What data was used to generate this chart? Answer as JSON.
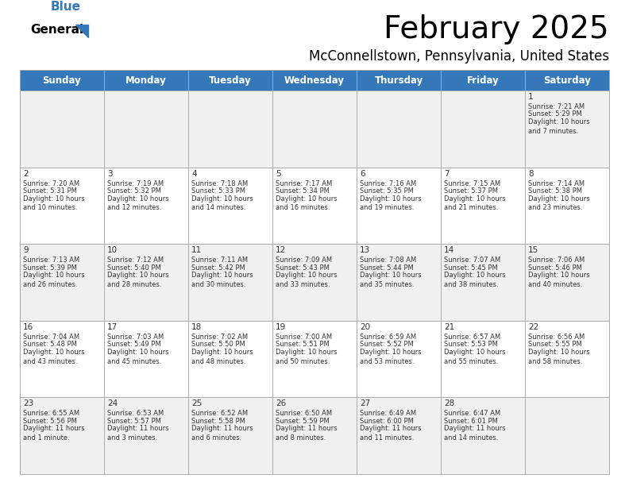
{
  "title": "February 2025",
  "subtitle": "McConnellstown, Pennsylvania, United States",
  "header_color": "#3578B9",
  "header_text_color": "#FFFFFF",
  "cell_bg_row0": "#F0F0F0",
  "cell_bg_row1": "#FFFFFF",
  "cell_bg_row2": "#F0F0F0",
  "cell_bg_row3": "#FFFFFF",
  "cell_bg_row4": "#F0F0F0",
  "border_color": "#AAAAAA",
  "text_color": "#333333",
  "days_of_week": [
    "Sunday",
    "Monday",
    "Tuesday",
    "Wednesday",
    "Thursday",
    "Friday",
    "Saturday"
  ],
  "weeks": [
    [
      {
        "day": "",
        "sunrise": "",
        "sunset": "",
        "daylight": ""
      },
      {
        "day": "",
        "sunrise": "",
        "sunset": "",
        "daylight": ""
      },
      {
        "day": "",
        "sunrise": "",
        "sunset": "",
        "daylight": ""
      },
      {
        "day": "",
        "sunrise": "",
        "sunset": "",
        "daylight": ""
      },
      {
        "day": "",
        "sunrise": "",
        "sunset": "",
        "daylight": ""
      },
      {
        "day": "",
        "sunrise": "",
        "sunset": "",
        "daylight": ""
      },
      {
        "day": "1",
        "sunrise": "7:21 AM",
        "sunset": "5:29 PM",
        "daylight": "10 hours\nand 7 minutes."
      }
    ],
    [
      {
        "day": "2",
        "sunrise": "7:20 AM",
        "sunset": "5:31 PM",
        "daylight": "10 hours\nand 10 minutes."
      },
      {
        "day": "3",
        "sunrise": "7:19 AM",
        "sunset": "5:32 PM",
        "daylight": "10 hours\nand 12 minutes."
      },
      {
        "day": "4",
        "sunrise": "7:18 AM",
        "sunset": "5:33 PM",
        "daylight": "10 hours\nand 14 minutes."
      },
      {
        "day": "5",
        "sunrise": "7:17 AM",
        "sunset": "5:34 PM",
        "daylight": "10 hours\nand 16 minutes."
      },
      {
        "day": "6",
        "sunrise": "7:16 AM",
        "sunset": "5:35 PM",
        "daylight": "10 hours\nand 19 minutes."
      },
      {
        "day": "7",
        "sunrise": "7:15 AM",
        "sunset": "5:37 PM",
        "daylight": "10 hours\nand 21 minutes."
      },
      {
        "day": "8",
        "sunrise": "7:14 AM",
        "sunset": "5:38 PM",
        "daylight": "10 hours\nand 23 minutes."
      }
    ],
    [
      {
        "day": "9",
        "sunrise": "7:13 AM",
        "sunset": "5:39 PM",
        "daylight": "10 hours\nand 26 minutes."
      },
      {
        "day": "10",
        "sunrise": "7:12 AM",
        "sunset": "5:40 PM",
        "daylight": "10 hours\nand 28 minutes."
      },
      {
        "day": "11",
        "sunrise": "7:11 AM",
        "sunset": "5:42 PM",
        "daylight": "10 hours\nand 30 minutes."
      },
      {
        "day": "12",
        "sunrise": "7:09 AM",
        "sunset": "5:43 PM",
        "daylight": "10 hours\nand 33 minutes."
      },
      {
        "day": "13",
        "sunrise": "7:08 AM",
        "sunset": "5:44 PM",
        "daylight": "10 hours\nand 35 minutes."
      },
      {
        "day": "14",
        "sunrise": "7:07 AM",
        "sunset": "5:45 PM",
        "daylight": "10 hours\nand 38 minutes."
      },
      {
        "day": "15",
        "sunrise": "7:06 AM",
        "sunset": "5:46 PM",
        "daylight": "10 hours\nand 40 minutes."
      }
    ],
    [
      {
        "day": "16",
        "sunrise": "7:04 AM",
        "sunset": "5:48 PM",
        "daylight": "10 hours\nand 43 minutes."
      },
      {
        "day": "17",
        "sunrise": "7:03 AM",
        "sunset": "5:49 PM",
        "daylight": "10 hours\nand 45 minutes."
      },
      {
        "day": "18",
        "sunrise": "7:02 AM",
        "sunset": "5:50 PM",
        "daylight": "10 hours\nand 48 minutes."
      },
      {
        "day": "19",
        "sunrise": "7:00 AM",
        "sunset": "5:51 PM",
        "daylight": "10 hours\nand 50 minutes."
      },
      {
        "day": "20",
        "sunrise": "6:59 AM",
        "sunset": "5:52 PM",
        "daylight": "10 hours\nand 53 minutes."
      },
      {
        "day": "21",
        "sunrise": "6:57 AM",
        "sunset": "5:53 PM",
        "daylight": "10 hours\nand 55 minutes."
      },
      {
        "day": "22",
        "sunrise": "6:56 AM",
        "sunset": "5:55 PM",
        "daylight": "10 hours\nand 58 minutes."
      }
    ],
    [
      {
        "day": "23",
        "sunrise": "6:55 AM",
        "sunset": "5:56 PM",
        "daylight": "11 hours\nand 1 minute."
      },
      {
        "day": "24",
        "sunrise": "6:53 AM",
        "sunset": "5:57 PM",
        "daylight": "11 hours\nand 3 minutes."
      },
      {
        "day": "25",
        "sunrise": "6:52 AM",
        "sunset": "5:58 PM",
        "daylight": "11 hours\nand 6 minutes."
      },
      {
        "day": "26",
        "sunrise": "6:50 AM",
        "sunset": "5:59 PM",
        "daylight": "11 hours\nand 8 minutes."
      },
      {
        "day": "27",
        "sunrise": "6:49 AM",
        "sunset": "6:00 PM",
        "daylight": "11 hours\nand 11 minutes."
      },
      {
        "day": "28",
        "sunrise": "6:47 AM",
        "sunset": "6:01 PM",
        "daylight": "11 hours\nand 14 minutes."
      },
      {
        "day": "",
        "sunrise": "",
        "sunset": "",
        "daylight": ""
      }
    ]
  ]
}
